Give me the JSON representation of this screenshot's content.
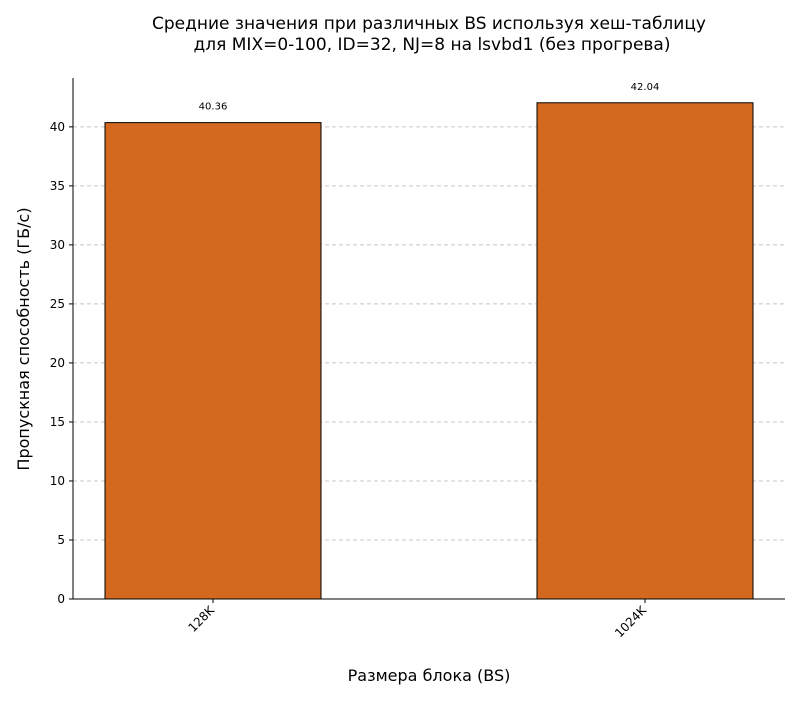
{
  "chart_data": {
    "type": "bar",
    "title": "Средние значения при различных BS используя хеш-таблицу",
    "subtitle": "для MIX=0-100, ID=32, NJ=8 на lsvbd1 (без прогрева)",
    "xlabel": "Размера блока (BS)",
    "ylabel": "Пропускная способность (ГБ/с)",
    "categories": [
      "128K",
      "1024K"
    ],
    "values": [
      40.36,
      42.04
    ],
    "value_labels": [
      "40.36",
      "42.04"
    ],
    "ylim": [
      0,
      44.14
    ],
    "yticks": [
      0,
      5,
      10,
      15,
      20,
      25,
      30,
      35,
      40
    ],
    "ytick_labels": [
      "0",
      "5",
      "10",
      "15",
      "20",
      "25",
      "30",
      "35",
      "40"
    ],
    "grid": "y-dashed",
    "legend": "none",
    "colors": {
      "bar_fill": "#d2691e",
      "bar_edge": "#000000",
      "grid": "#c8c8c8",
      "axis": "#000000"
    }
  }
}
